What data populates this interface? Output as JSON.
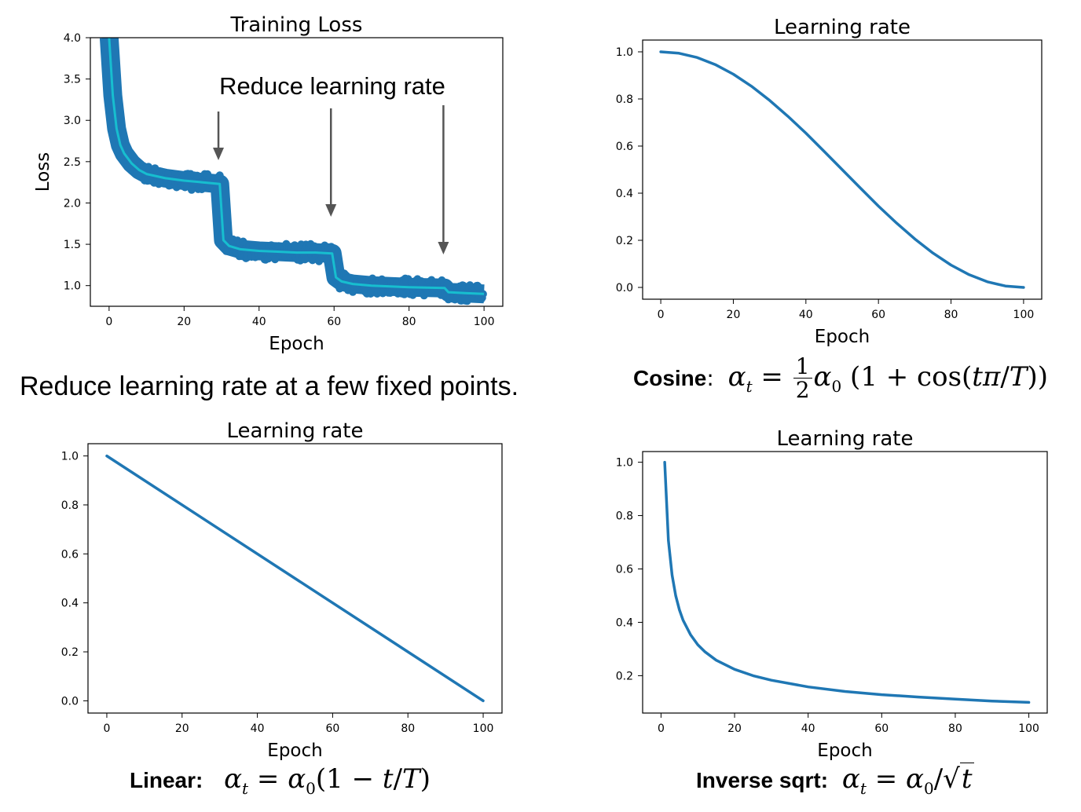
{
  "chart_data": [
    {
      "type": "line",
      "title": "Training Loss",
      "xlabel": "Epoch",
      "ylabel": "Loss",
      "xlim": [
        -5,
        105
      ],
      "ylim": [
        0.75,
        4.0
      ],
      "xticks": [
        0,
        20,
        40,
        60,
        80,
        100
      ],
      "yticks": [
        1.0,
        1.5,
        2.0,
        2.5,
        3.0,
        3.5,
        4.0
      ],
      "grid": false,
      "series": [
        {
          "color": "#1f77b4",
          "style": "noisy-band",
          "x": [
            0,
            1,
            2,
            3,
            4,
            6,
            8,
            10,
            15,
            20,
            25,
            29.5,
            30.5,
            32,
            35,
            40,
            45,
            50,
            55,
            59.5,
            60.5,
            62,
            65,
            70,
            80,
            89.5,
            90.5,
            95,
            100
          ],
          "y": [
            4.0,
            3.3,
            2.9,
            2.7,
            2.6,
            2.48,
            2.4,
            2.35,
            2.3,
            2.27,
            2.25,
            2.23,
            1.55,
            1.48,
            1.44,
            1.42,
            1.41,
            1.4,
            1.4,
            1.39,
            1.1,
            1.05,
            1.02,
            1.0,
            0.98,
            0.97,
            0.92,
            0.91,
            0.9
          ]
        },
        {
          "color": "#17becf",
          "style": "smoothed",
          "x": [
            0,
            1,
            2,
            3,
            4,
            6,
            8,
            10,
            15,
            20,
            25,
            29.5,
            30.5,
            32,
            35,
            40,
            45,
            50,
            55,
            59.5,
            60.5,
            62,
            65,
            70,
            80,
            89.5,
            90.5,
            95,
            100
          ],
          "y": [
            4.0,
            3.3,
            2.9,
            2.7,
            2.6,
            2.48,
            2.4,
            2.35,
            2.3,
            2.27,
            2.25,
            2.23,
            1.55,
            1.48,
            1.44,
            1.42,
            1.41,
            1.4,
            1.4,
            1.39,
            1.1,
            1.05,
            1.02,
            1.0,
            0.98,
            0.97,
            0.92,
            0.91,
            0.9
          ]
        }
      ],
      "annotations": [
        {
          "text": "Reduce learning rate",
          "arrows_at_epoch": [
            30,
            60,
            90
          ]
        }
      ]
    },
    {
      "type": "line",
      "title": "Learning rate",
      "xlabel": "Epoch",
      "ylabel": "",
      "xlim": [
        -5,
        105
      ],
      "ylim": [
        -0.05,
        1.05
      ],
      "xticks": [
        0,
        20,
        40,
        60,
        80,
        100
      ],
      "yticks": [
        0.0,
        0.2,
        0.4,
        0.6,
        0.8,
        1.0
      ],
      "grid": false,
      "series": [
        {
          "color": "#1f77b4",
          "x": [
            0,
            5,
            10,
            15,
            20,
            25,
            30,
            35,
            40,
            45,
            50,
            55,
            60,
            65,
            70,
            75,
            80,
            85,
            90,
            95,
            100
          ],
          "y": [
            1.0,
            0.994,
            0.976,
            0.946,
            0.905,
            0.854,
            0.794,
            0.727,
            0.655,
            0.578,
            0.5,
            0.422,
            0.345,
            0.273,
            0.206,
            0.146,
            0.095,
            0.054,
            0.024,
            0.006,
            0.0
          ]
        }
      ]
    },
    {
      "type": "line",
      "title": "Learning rate",
      "xlabel": "Epoch",
      "ylabel": "",
      "xlim": [
        -5,
        105
      ],
      "ylim": [
        -0.05,
        1.05
      ],
      "xticks": [
        0,
        20,
        40,
        60,
        80,
        100
      ],
      "yticks": [
        0.0,
        0.2,
        0.4,
        0.6,
        0.8,
        1.0
      ],
      "grid": false,
      "series": [
        {
          "color": "#1f77b4",
          "x": [
            0,
            100
          ],
          "y": [
            1.0,
            0.0
          ]
        }
      ]
    },
    {
      "type": "line",
      "title": "Learning rate",
      "xlabel": "Epoch",
      "ylabel": "",
      "xlim": [
        -5,
        105
      ],
      "ylim": [
        0.06,
        1.04
      ],
      "xticks": [
        0,
        20,
        40,
        60,
        80,
        100
      ],
      "yticks": [
        0.2,
        0.4,
        0.6,
        0.8,
        1.0
      ],
      "grid": false,
      "series": [
        {
          "color": "#1f77b4",
          "x": [
            1,
            2,
            3,
            4,
            5,
            6,
            8,
            10,
            12,
            15,
            20,
            25,
            30,
            40,
            50,
            60,
            70,
            80,
            90,
            100
          ],
          "y": [
            1.0,
            0.707,
            0.577,
            0.5,
            0.447,
            0.408,
            0.354,
            0.316,
            0.289,
            0.258,
            0.224,
            0.2,
            0.183,
            0.158,
            0.141,
            0.129,
            0.12,
            0.112,
            0.105,
            0.1
          ]
        }
      ]
    }
  ],
  "captions": {
    "step": "Reduce learning rate at a few fixed points.",
    "cosine_label": "Cosine",
    "linear_label": "Linear:",
    "invsqrt_label": "Inverse sqrt:"
  }
}
